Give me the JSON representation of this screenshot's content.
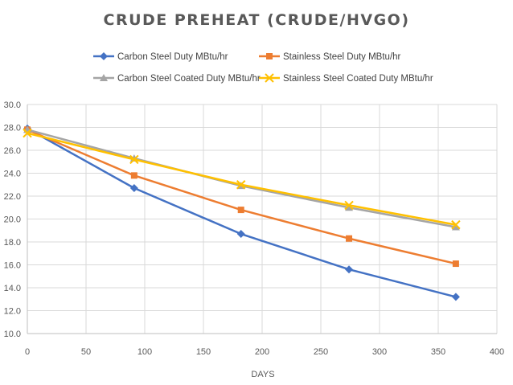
{
  "chart_data": {
    "type": "line",
    "title": "CRUDE PREHEAT (CRUDE/HVGO)",
    "xlabel": "DAYS",
    "ylabel": "",
    "xlim": [
      0,
      400
    ],
    "ylim": [
      10.0,
      30.0
    ],
    "xticks": [
      "0",
      "50",
      "100",
      "150",
      "200",
      "250",
      "300",
      "350",
      "400"
    ],
    "yticks": [
      "10.0",
      "12.0",
      "14.0",
      "16.0",
      "18.0",
      "20.0",
      "22.0",
      "24.0",
      "26.0",
      "28.0",
      "30.0"
    ],
    "grid": true,
    "legend_position": "top",
    "series": [
      {
        "name": "Carbon Steel Duty MBtu/hr",
        "color": "#4472c4",
        "marker": "diamond",
        "x": [
          0,
          91,
          182,
          274,
          365
        ],
        "y": [
          27.9,
          22.7,
          18.7,
          15.6,
          13.2
        ]
      },
      {
        "name": "Stainless Steel Duty MBtu/hr",
        "color": "#ed7d31",
        "marker": "square",
        "x": [
          0,
          91,
          182,
          274,
          365
        ],
        "y": [
          27.8,
          23.8,
          20.8,
          18.3,
          16.1
        ]
      },
      {
        "name": "Carbon Steel Coated Duty MBtu/hr",
        "color": "#a5a5a5",
        "marker": "triangle",
        "x": [
          0,
          91,
          182,
          274,
          365
        ],
        "y": [
          27.8,
          25.3,
          22.9,
          21.0,
          19.3
        ]
      },
      {
        "name": "Stainless Steel Coated Duty MBtu/hr",
        "color": "#ffc000",
        "marker": "x",
        "x": [
          0,
          91,
          182,
          274,
          365
        ],
        "y": [
          27.5,
          25.2,
          23.0,
          21.2,
          19.5
        ]
      }
    ]
  }
}
